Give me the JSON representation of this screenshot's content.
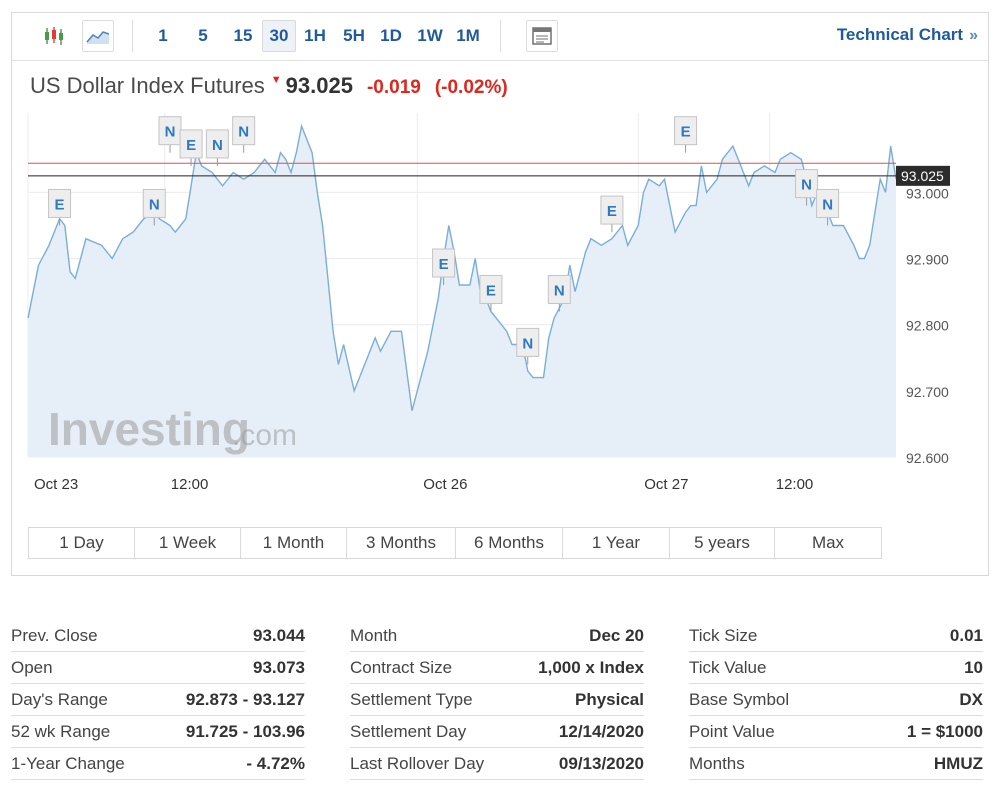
{
  "toolbar": {
    "icons": [
      "candlestick-icon",
      "area-chart-icon",
      "settings-panel-icon"
    ],
    "periods": [
      "1",
      "5",
      "15",
      "30",
      "1H",
      "5H",
      "1D",
      "1W",
      "1M"
    ],
    "active_period": "30",
    "technical_link": "Technical Chart",
    "technical_chevron": "»"
  },
  "instrument": {
    "name": "US Dollar Index Futures",
    "direction_glyph": "▼",
    "last": "93.025",
    "change": "-0.019",
    "change_pct": "(-0.02%)"
  },
  "chart_data": {
    "type": "area",
    "y_ticks": [
      "93.000",
      "92.900",
      "92.800",
      "92.700",
      "92.600"
    ],
    "ylim": [
      92.6,
      93.12
    ],
    "x_labels": [
      "Oct 23",
      "12:00",
      "Oct 26",
      "Oct 27",
      "12:00"
    ],
    "x_label_positions": [
      0,
      26,
      74,
      116,
      141
    ],
    "x_max": 165,
    "price_tag": "93.025",
    "lines": [
      {
        "name": "prev-close",
        "value": 93.044,
        "color": "#d9534f"
      },
      {
        "name": "last-price",
        "value": 93.025,
        "color": "#222222"
      }
    ],
    "series": [
      {
        "name": "price",
        "color": "#7aaed8",
        "fill": "#e6eef7",
        "values": [
          {
            "x": 0,
            "y": 92.81
          },
          {
            "x": 2,
            "y": 92.89
          },
          {
            "x": 4,
            "y": 92.92
          },
          {
            "x": 6,
            "y": 92.96
          },
          {
            "x": 7,
            "y": 92.95
          },
          {
            "x": 8,
            "y": 92.88
          },
          {
            "x": 9,
            "y": 92.87
          },
          {
            "x": 11,
            "y": 92.93
          },
          {
            "x": 14,
            "y": 92.92
          },
          {
            "x": 16,
            "y": 92.9
          },
          {
            "x": 18,
            "y": 92.93
          },
          {
            "x": 20,
            "y": 92.94
          },
          {
            "x": 22,
            "y": 92.96
          },
          {
            "x": 24,
            "y": 92.97
          },
          {
            "x": 25,
            "y": 92.96
          },
          {
            "x": 27,
            "y": 92.95
          },
          {
            "x": 28,
            "y": 92.94
          },
          {
            "x": 30,
            "y": 92.96
          },
          {
            "x": 31,
            "y": 93.01
          },
          {
            "x": 32,
            "y": 93.06
          },
          {
            "x": 33,
            "y": 93.04
          },
          {
            "x": 35,
            "y": 93.03
          },
          {
            "x": 37,
            "y": 93.01
          },
          {
            "x": 39,
            "y": 93.03
          },
          {
            "x": 41,
            "y": 93.02
          },
          {
            "x": 43,
            "y": 93.03
          },
          {
            "x": 45,
            "y": 93.05
          },
          {
            "x": 47,
            "y": 93.03
          },
          {
            "x": 48,
            "y": 93.06
          },
          {
            "x": 49,
            "y": 93.05
          },
          {
            "x": 50,
            "y": 93.03
          },
          {
            "x": 51,
            "y": 93.06
          },
          {
            "x": 52,
            "y": 93.1
          },
          {
            "x": 54,
            "y": 93.06
          },
          {
            "x": 55,
            "y": 93.0
          },
          {
            "x": 56,
            "y": 92.95
          },
          {
            "x": 57,
            "y": 92.87
          },
          {
            "x": 58,
            "y": 92.79
          },
          {
            "x": 59,
            "y": 92.74
          },
          {
            "x": 60,
            "y": 92.77
          },
          {
            "x": 62,
            "y": 92.7
          },
          {
            "x": 64,
            "y": 92.74
          },
          {
            "x": 66,
            "y": 92.78
          },
          {
            "x": 67,
            "y": 92.76
          },
          {
            "x": 69,
            "y": 92.79
          },
          {
            "x": 71,
            "y": 92.79
          },
          {
            "x": 73,
            "y": 92.67
          },
          {
            "x": 74,
            "y": 92.7
          },
          {
            "x": 76,
            "y": 92.76
          },
          {
            "x": 78,
            "y": 92.84
          },
          {
            "x": 79,
            "y": 92.9
          },
          {
            "x": 80,
            "y": 92.95
          },
          {
            "x": 81,
            "y": 92.91
          },
          {
            "x": 82,
            "y": 92.86
          },
          {
            "x": 84,
            "y": 92.86
          },
          {
            "x": 85,
            "y": 92.9
          },
          {
            "x": 86,
            "y": 92.85
          },
          {
            "x": 87,
            "y": 92.84
          },
          {
            "x": 88,
            "y": 92.82
          },
          {
            "x": 90,
            "y": 92.8
          },
          {
            "x": 91,
            "y": 92.79
          },
          {
            "x": 92,
            "y": 92.77
          },
          {
            "x": 94,
            "y": 92.77
          },
          {
            "x": 95,
            "y": 92.73
          },
          {
            "x": 96,
            "y": 92.72
          },
          {
            "x": 98,
            "y": 92.72
          },
          {
            "x": 99,
            "y": 92.78
          },
          {
            "x": 100,
            "y": 92.81
          },
          {
            "x": 102,
            "y": 92.84
          },
          {
            "x": 103,
            "y": 92.89
          },
          {
            "x": 104,
            "y": 92.85
          },
          {
            "x": 106,
            "y": 92.91
          },
          {
            "x": 107,
            "y": 92.93
          },
          {
            "x": 109,
            "y": 92.92
          },
          {
            "x": 111,
            "y": 92.93
          },
          {
            "x": 113,
            "y": 92.95
          },
          {
            "x": 114,
            "y": 92.92
          },
          {
            "x": 116,
            "y": 92.95
          },
          {
            "x": 117,
            "y": 93.0
          },
          {
            "x": 118,
            "y": 93.02
          },
          {
            "x": 120,
            "y": 93.01
          },
          {
            "x": 121,
            "y": 93.02
          },
          {
            "x": 123,
            "y": 92.94
          },
          {
            "x": 125,
            "y": 92.97
          },
          {
            "x": 126,
            "y": 92.98
          },
          {
            "x": 127,
            "y": 92.98
          },
          {
            "x": 128,
            "y": 93.04
          },
          {
            "x": 129,
            "y": 93.0
          },
          {
            "x": 131,
            "y": 93.02
          },
          {
            "x": 132,
            "y": 93.05
          },
          {
            "x": 134,
            "y": 93.07
          },
          {
            "x": 135,
            "y": 93.05
          },
          {
            "x": 136,
            "y": 93.03
          },
          {
            "x": 137,
            "y": 93.01
          },
          {
            "x": 138,
            "y": 93.03
          },
          {
            "x": 140,
            "y": 93.04
          },
          {
            "x": 142,
            "y": 93.03
          },
          {
            "x": 143,
            "y": 93.05
          },
          {
            "x": 145,
            "y": 93.06
          },
          {
            "x": 147,
            "y": 93.05
          },
          {
            "x": 148,
            "y": 93.02
          },
          {
            "x": 149,
            "y": 92.98
          },
          {
            "x": 150,
            "y": 93.0
          },
          {
            "x": 152,
            "y": 92.97
          },
          {
            "x": 153,
            "y": 92.95
          },
          {
            "x": 155,
            "y": 92.95
          },
          {
            "x": 157,
            "y": 92.92
          },
          {
            "x": 158,
            "y": 92.9
          },
          {
            "x": 159,
            "y": 92.9
          },
          {
            "x": 160,
            "y": 92.92
          },
          {
            "x": 162,
            "y": 93.02
          },
          {
            "x": 163,
            "y": 93.0
          },
          {
            "x": 164,
            "y": 93.07
          },
          {
            "x": 165,
            "y": 93.02
          }
        ]
      }
    ],
    "event_markers": [
      {
        "letter": "E",
        "x": 6,
        "y": 92.95
      },
      {
        "letter": "N",
        "x": 24,
        "y": 92.95
      },
      {
        "letter": "N",
        "x": 27,
        "y": 93.06
      },
      {
        "letter": "E",
        "x": 31,
        "y": 93.04
      },
      {
        "letter": "N",
        "x": 36,
        "y": 93.04
      },
      {
        "letter": "N",
        "x": 41,
        "y": 93.06
      },
      {
        "letter": "E",
        "x": 79,
        "y": 92.86
      },
      {
        "letter": "E",
        "x": 88,
        "y": 92.82
      },
      {
        "letter": "N",
        "x": 95,
        "y": 92.74
      },
      {
        "letter": "N",
        "x": 101,
        "y": 92.82
      },
      {
        "letter": "E",
        "x": 111,
        "y": 92.94
      },
      {
        "letter": "E",
        "x": 125,
        "y": 93.06
      },
      {
        "letter": "N",
        "x": 148,
        "y": 92.98
      },
      {
        "letter": "N",
        "x": 152,
        "y": 92.95
      }
    ],
    "watermark": {
      "brand": "Investing",
      "suffix": ".com"
    }
  },
  "ranges": [
    "1 Day",
    "1 Week",
    "1 Month",
    "3 Months",
    "6 Months",
    "1 Year",
    "5 years",
    "Max"
  ],
  "stats": [
    [
      {
        "label": "Prev. Close",
        "value": "93.044"
      },
      {
        "label": "Open",
        "value": "93.073"
      },
      {
        "label": "Day's Range",
        "value": "92.873 - 93.127"
      },
      {
        "label": "52 wk Range",
        "value": "91.725 - 103.96"
      },
      {
        "label": "1-Year Change",
        "value": "- 4.72%"
      }
    ],
    [
      {
        "label": "Month",
        "value": "Dec 20"
      },
      {
        "label": "Contract Size",
        "value": "1,000 x Index"
      },
      {
        "label": "Settlement Type",
        "value": "Physical"
      },
      {
        "label": "Settlement Day",
        "value": "12/14/2020"
      },
      {
        "label": "Last Rollover Day",
        "value": "09/13/2020"
      }
    ],
    [
      {
        "label": "Tick Size",
        "value": "0.01"
      },
      {
        "label": "Tick Value",
        "value": "10"
      },
      {
        "label": "Base Symbol",
        "value": "DX"
      },
      {
        "label": "Point Value",
        "value": "1 = $1000"
      },
      {
        "label": "Months",
        "value": "HMUZ"
      }
    ]
  ]
}
